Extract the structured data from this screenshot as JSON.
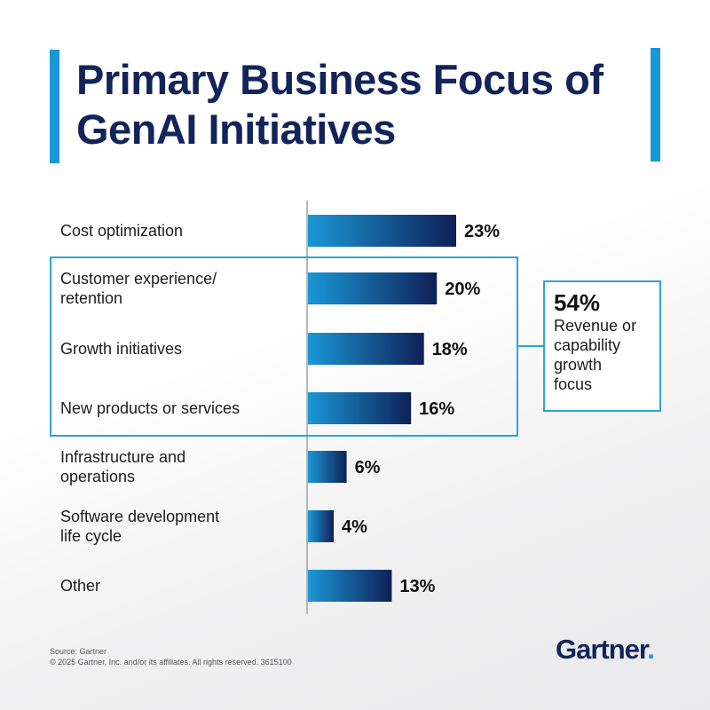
{
  "title": "Primary Business Focus of GenAI Initiatives",
  "chart_data": {
    "type": "bar",
    "orientation": "horizontal",
    "categories": [
      "Cost optimization",
      "Customer experience/\nretention",
      "Growth initiatives",
      "New products or services",
      "Infrastructure and\noperations",
      "Software development\nlife cycle",
      "Other"
    ],
    "values": [
      23,
      20,
      18,
      16,
      6,
      4,
      13
    ],
    "value_labels": [
      "23%",
      "20%",
      "18%",
      "16%",
      "6%",
      "4%",
      "13%"
    ],
    "unit": "%",
    "xlim": [
      0,
      23
    ],
    "bar_colors": [
      "#1a97d6",
      "#0f2057"
    ],
    "grid": false
  },
  "callout": {
    "percent": "54%",
    "text": "Revenue or\ncapability\ngrowth\nfocus",
    "color": "#2fa2d9"
  },
  "footer": {
    "source": "Source: Gartner",
    "copyright": "© 2025 Gartner, Inc. and/or its affiliates. All rights reserved. 3615100"
  },
  "logo": {
    "text": "Gartner",
    "dot": "."
  },
  "colors": {
    "title": "#12245a",
    "accent": "#1a97d6"
  }
}
